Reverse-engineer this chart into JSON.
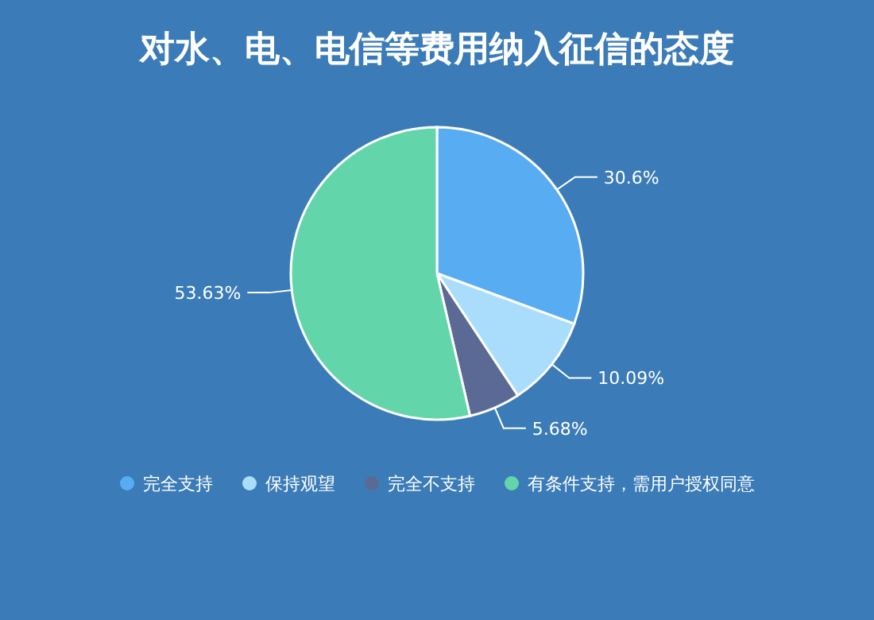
{
  "chart_data": {
    "type": "pie",
    "title": "对水、电、电信等费用纳入征信的态度",
    "categories": [
      "完全支持",
      "保持观望",
      "完全不支持",
      "有条件支持，需用户授权同意"
    ],
    "values": [
      30.6,
      10.09,
      5.68,
      53.63
    ],
    "colors": [
      "#58acf2",
      "#a9ddfb",
      "#5b6a94",
      "#62d6aa"
    ],
    "value_labels": [
      "30.6%",
      "10.09%",
      "5.68%",
      "53.63%"
    ],
    "legend": "bottom"
  }
}
